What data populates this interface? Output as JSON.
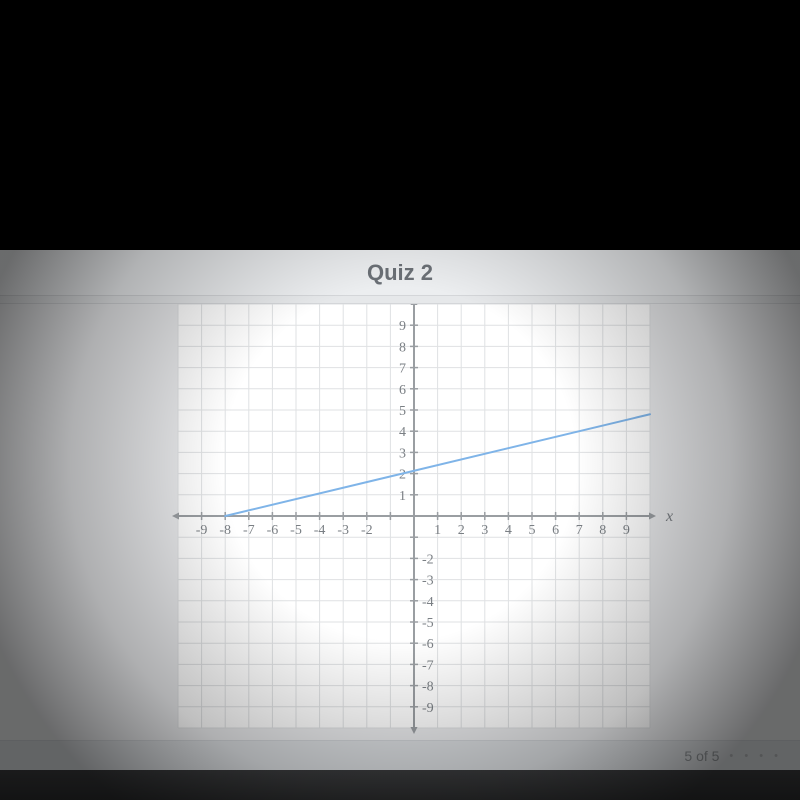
{
  "header": {
    "title": "Quiz 2"
  },
  "footer": {
    "pager": "5 of 5",
    "dots": "• • • •"
  },
  "chart": {
    "type": "line",
    "xlim": [
      -10,
      10
    ],
    "ylim": [
      -10,
      10
    ],
    "xtick_step": 1,
    "ytick_step": 1,
    "xticks_labeled": [
      -9,
      -8,
      -7,
      -6,
      -5,
      -4,
      -3,
      -2,
      1,
      2,
      3,
      4,
      5,
      6,
      7,
      8,
      9
    ],
    "yticks_labeled_pos": [
      1,
      2,
      3,
      4,
      5,
      6,
      7,
      8,
      9
    ],
    "yticks_labeled_neg": [
      -2,
      -3,
      -4,
      -5,
      -6,
      -7,
      -8,
      -9
    ],
    "x_axis_label": "x",
    "background_color": "#ffffff",
    "grid_color": "#dfe1e3",
    "axis_color": "#9a9ea2",
    "tick_label_color": "#7a7f84",
    "tick_fontsize": 14,
    "line": {
      "color": "#7fb4e8",
      "width": 2,
      "points": [
        [
          -8,
          0
        ],
        [
          10,
          4.8
        ]
      ]
    }
  }
}
